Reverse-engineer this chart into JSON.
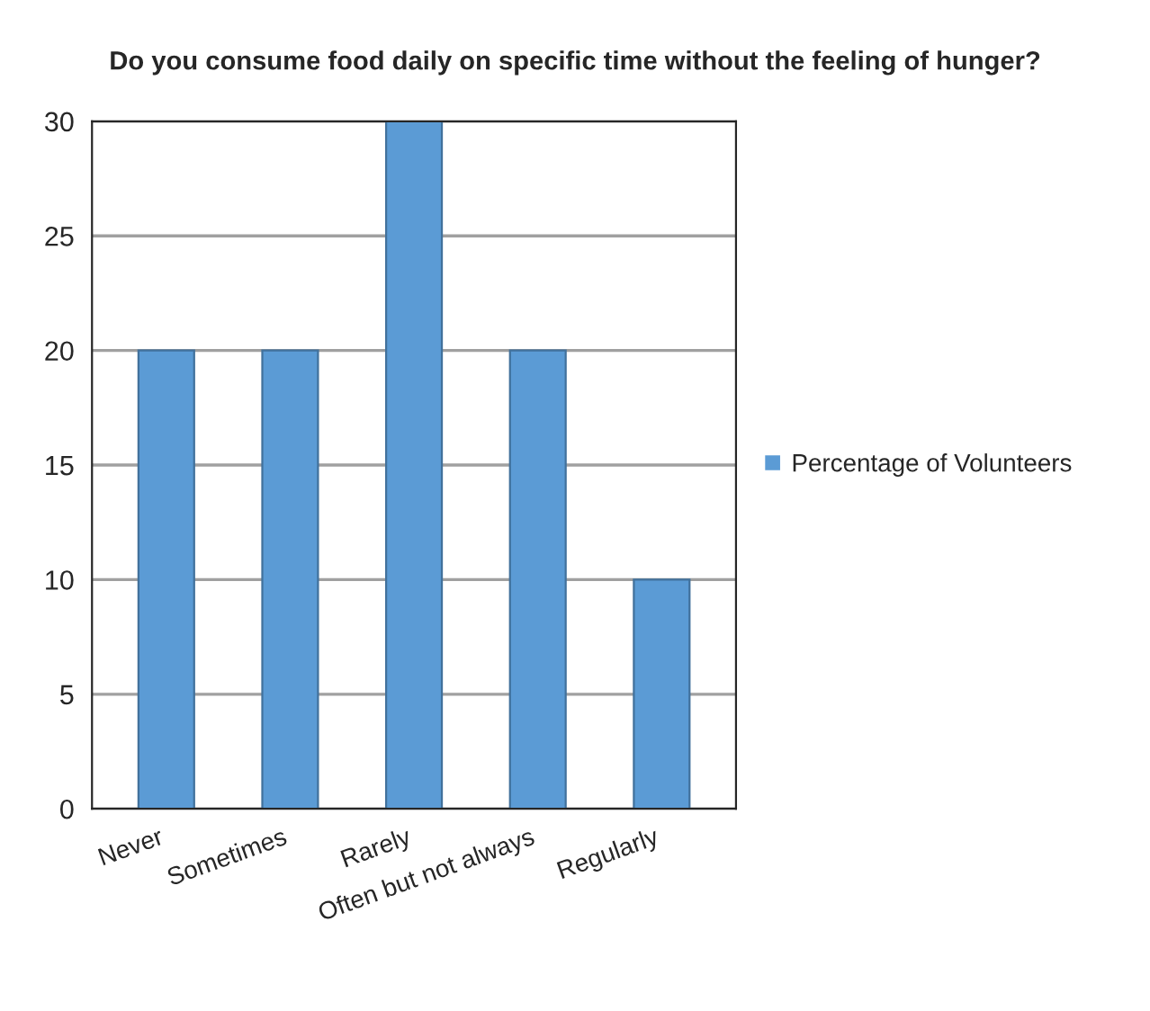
{
  "chart_data": {
    "type": "bar",
    "title": "Do you consume food daily on specific time without the feeling of hunger?",
    "categories": [
      "Never",
      "Sometimes",
      "Rarely",
      "Often but not always",
      "Regularly"
    ],
    "series": [
      {
        "name": "Percentage of Volunteers",
        "color": "#5b9bd5",
        "values": [
          20,
          20,
          30,
          20,
          10
        ]
      }
    ],
    "ylim": [
      0,
      30
    ],
    "yticks": [
      0,
      5,
      10,
      15,
      20,
      25,
      30
    ],
    "grid": "y",
    "legend": "right"
  }
}
